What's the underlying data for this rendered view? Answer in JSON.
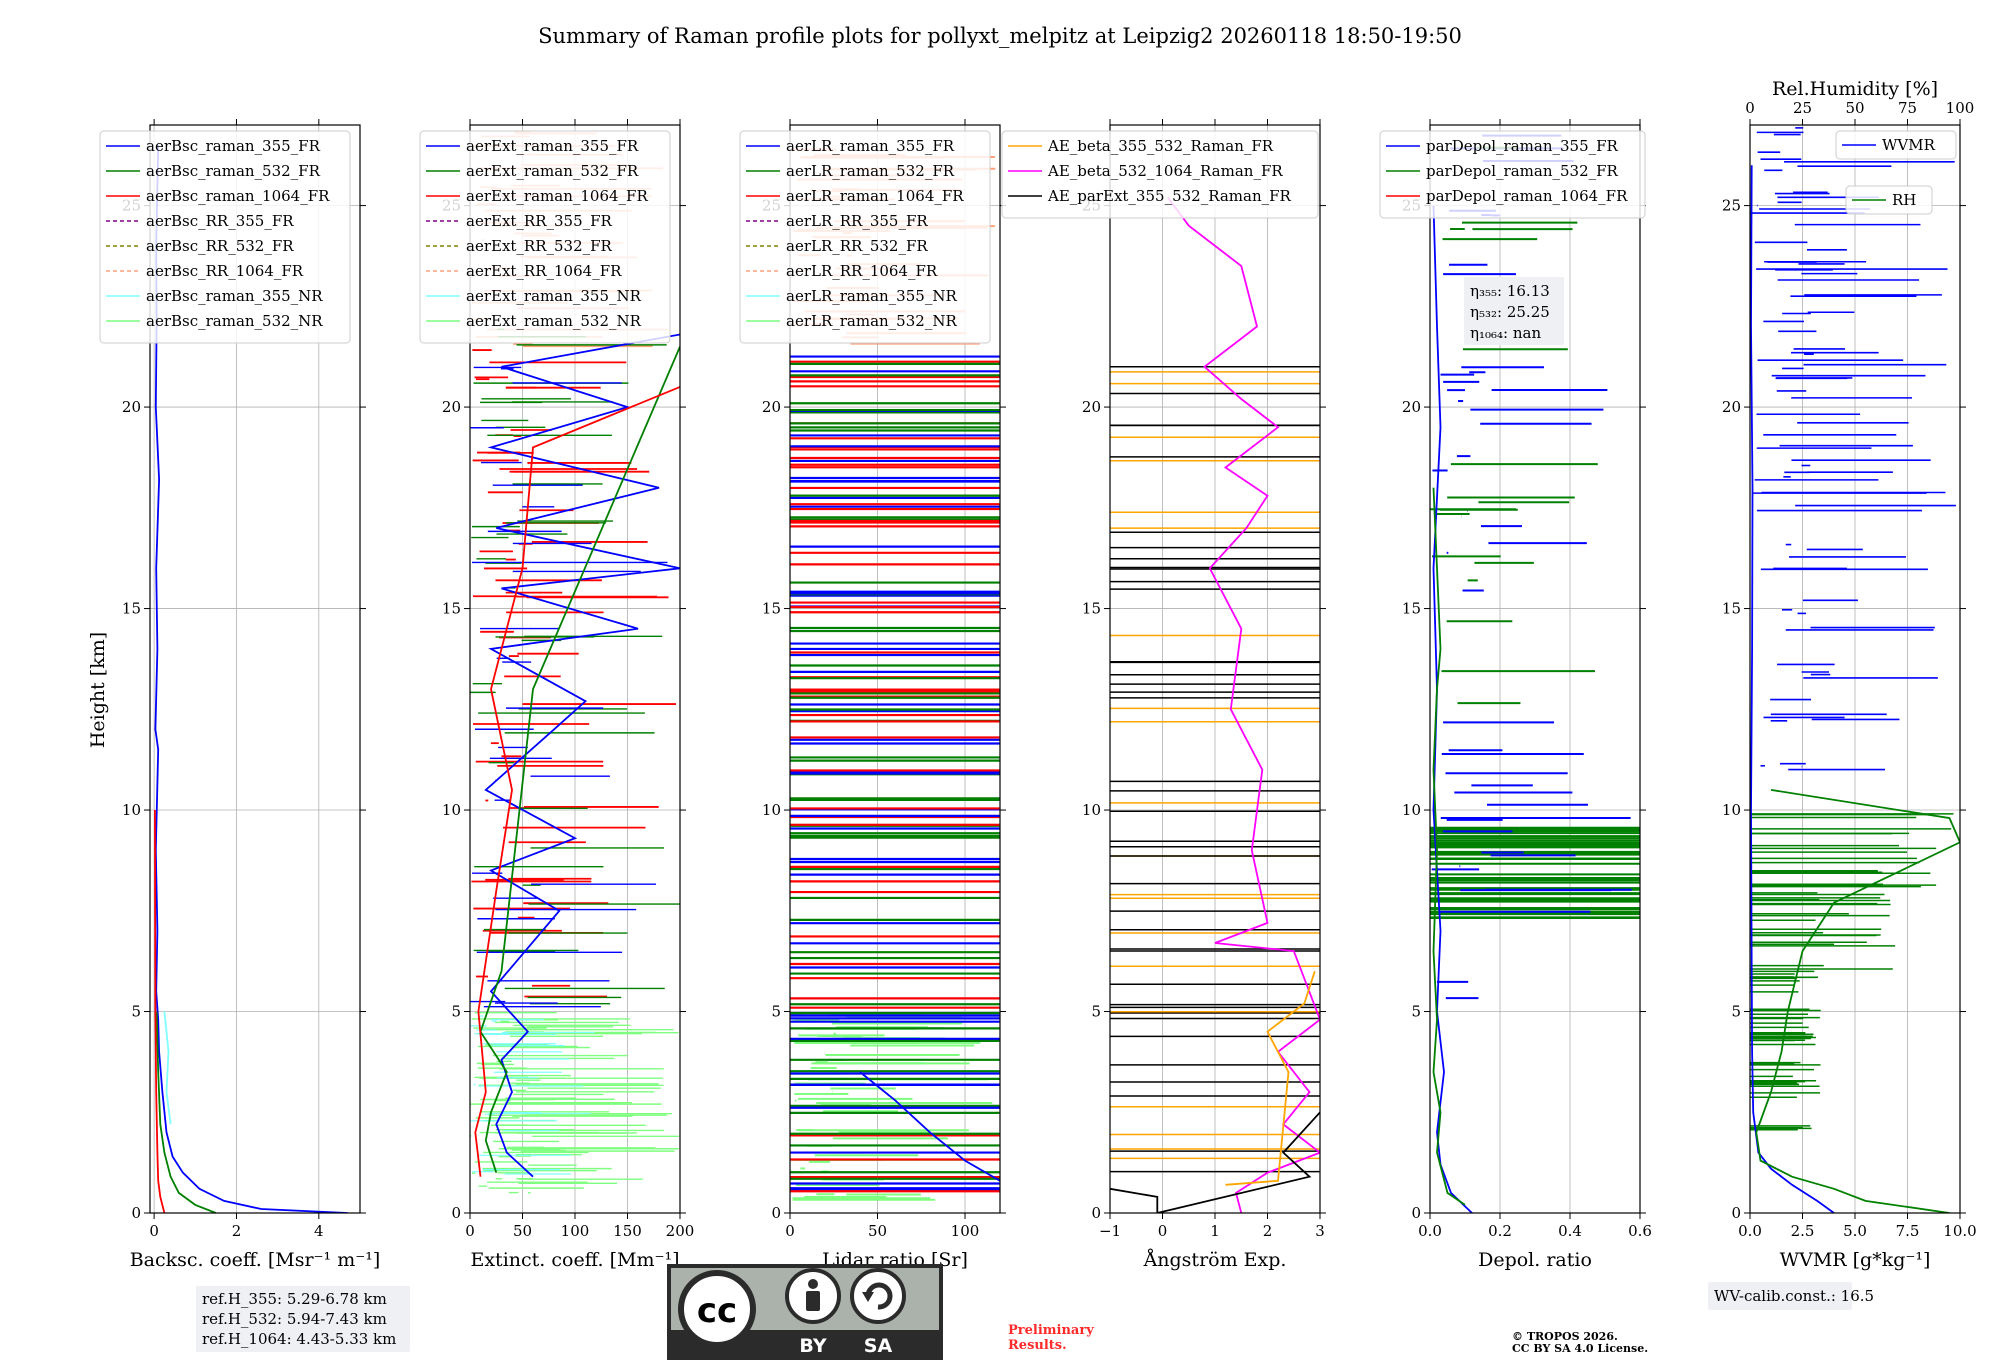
{
  "title": "Summary of Raman profile plots for pollyxt_melpitz at Leipzig2 20260118 18:50-19:50",
  "ylabel": "Height [km]",
  "colors": {
    "blue": "#0000ff",
    "green": "#008000",
    "red": "#ff0000",
    "purple": "#800080",
    "olive": "#808000",
    "salmon": "#ffa07a",
    "cyan": "#7fffff",
    "lightgreen": "#7fff7f",
    "orange": "#ffa500",
    "magenta": "#ff00ff",
    "black": "#000000"
  },
  "chart_data": [
    {
      "type": "line",
      "id": "bsc",
      "xlabel": "Backsc. coeff. [Msr⁻¹ m⁻¹]",
      "ylabel": "Height [km]",
      "xlim": [
        -0.1,
        5
      ],
      "ylim": [
        0,
        27
      ],
      "xticks": [
        0,
        2,
        4
      ],
      "xticklabels": [
        "0",
        "2",
        "4"
      ],
      "yticks": [
        0,
        5,
        10,
        15,
        20,
        25
      ],
      "yticklabels": [
        "0",
        "5",
        "10",
        "15",
        "20",
        "25"
      ],
      "legend": [
        "aerBsc_raman_355_FR",
        "aerBsc_raman_532_FR",
        "aerBsc_raman_1064_FR",
        "aerBsc_RR_355_FR",
        "aerBsc_RR_532_FR",
        "aerBsc_RR_1064_FR",
        "aerBsc_raman_355_NR",
        "aerBsc_raman_532_NR"
      ],
      "legend_loc": "top-left",
      "series": [
        {
          "name": "aerBsc_raman_355_FR",
          "color": "blue",
          "points": [
            [
              4.7,
              0
            ],
            [
              2.6,
              0.1
            ],
            [
              1.7,
              0.3
            ],
            [
              1.1,
              0.6
            ],
            [
              0.7,
              1.0
            ],
            [
              0.45,
              1.4
            ],
            [
              0.3,
              2.0
            ],
            [
              0.2,
              3.0
            ],
            [
              0.12,
              4.0
            ],
            [
              0.1,
              4.8
            ],
            [
              0.05,
              5.5
            ],
            [
              0.08,
              7
            ],
            [
              0.04,
              9
            ],
            [
              0.1,
              11.5
            ],
            [
              0.03,
              12
            ],
            [
              0.08,
              14
            ],
            [
              0.05,
              16
            ],
            [
              0.12,
              18.2
            ],
            [
              0.04,
              20
            ],
            [
              0.06,
              22
            ],
            [
              0.05,
              24
            ],
            [
              0.1,
              26.5
            ]
          ]
        },
        {
          "name": "aerBsc_raman_532_FR",
          "color": "green",
          "points": [
            [
              1.5,
              0
            ],
            [
              1.0,
              0.2
            ],
            [
              0.6,
              0.5
            ],
            [
              0.4,
              0.9
            ],
            [
              0.25,
              1.5
            ],
            [
              0.15,
              2.2
            ],
            [
              0.1,
              3.5
            ],
            [
              0.06,
              5
            ]
          ]
        },
        {
          "name": "aerBsc_raman_1064_FR",
          "color": "red",
          "points": [
            [
              0.25,
              0
            ],
            [
              0.15,
              0.4
            ],
            [
              0.1,
              0.8
            ],
            [
              0.08,
              1.5
            ],
            [
              0.05,
              3
            ],
            [
              0.03,
              5
            ],
            [
              0.02,
              10
            ]
          ]
        },
        {
          "name": "aerBsc_raman_355_NR",
          "color": "cyan",
          "points": [
            [
              0.4,
              2.2
            ],
            [
              0.3,
              3
            ],
            [
              0.35,
              4
            ],
            [
              0.25,
              5
            ]
          ]
        }
      ]
    },
    {
      "type": "line",
      "id": "ext",
      "xlabel": "Extinct. coeff. [Mm⁻¹]",
      "xlim": [
        0,
        200
      ],
      "ylim": [
        0,
        27
      ],
      "xticks": [
        0,
        50,
        100,
        150,
        200
      ],
      "xticklabels": [
        "0",
        "50",
        "100",
        "150",
        "200"
      ],
      "yticks": [
        0,
        5,
        10,
        15,
        20,
        25
      ],
      "yticklabels": [
        "0",
        "5",
        "10",
        "15",
        "20",
        "25"
      ],
      "legend": [
        "aerExt_raman_355_FR",
        "aerExt_raman_532_FR",
        "aerExt_raman_1064_FR",
        "aerExt_RR_355_FR",
        "aerExt_RR_532_FR",
        "aerExt_RR_1064_FR",
        "aerExt_raman_355_NR",
        "aerExt_raman_532_NR"
      ],
      "legend_loc": "top-left",
      "series": [
        {
          "name": "aerExt_raman_355_FR",
          "color": "blue",
          "points": [
            [
              60,
              0.9
            ],
            [
              35,
              1.5
            ],
            [
              25,
              2.2
            ],
            [
              40,
              3
            ],
            [
              30,
              3.8
            ],
            [
              55,
              4.5
            ],
            [
              20,
              5.5
            ],
            [
              85,
              7.5
            ],
            [
              20,
              8.5
            ],
            [
              100,
              9.3
            ],
            [
              15,
              10.5
            ],
            [
              80,
              12
            ],
            [
              110,
              12.7
            ],
            [
              20,
              14
            ],
            [
              160,
              14.5
            ],
            [
              30,
              15.5
            ],
            [
              200,
              16
            ],
            [
              25,
              17
            ],
            [
              180,
              18
            ],
            [
              20,
              19
            ],
            [
              150,
              20
            ],
            [
              30,
              21
            ],
            [
              200,
              21.8
            ]
          ]
        },
        {
          "name": "aerExt_raman_532_FR",
          "color": "green",
          "points": [
            [
              25,
              1
            ],
            [
              15,
              1.8
            ],
            [
              20,
              2.5
            ],
            [
              35,
              3.5
            ],
            [
              10,
              4.5
            ],
            [
              30,
              6
            ],
            [
              60,
              13
            ],
            [
              200,
              21.5
            ]
          ]
        },
        {
          "name": "aerExt_raman_1064_FR",
          "color": "red",
          "points": [
            [
              10,
              0.9
            ],
            [
              5,
              2
            ],
            [
              15,
              3
            ],
            [
              8,
              5
            ],
            [
              25,
              8
            ],
            [
              40,
              10.5
            ],
            [
              20,
              13
            ],
            [
              50,
              16
            ],
            [
              60,
              19
            ],
            [
              200,
              20.5
            ]
          ]
        }
      ]
    },
    {
      "type": "line",
      "id": "lr",
      "xlabel": "Lidar ratio [Sr]",
      "xlim": [
        0,
        120
      ],
      "ylim": [
        0,
        27
      ],
      "xticks": [
        0,
        50,
        100
      ],
      "xticklabels": [
        "0",
        "50",
        "100"
      ],
      "yticks": [
        0,
        5,
        10,
        15,
        20,
        25
      ],
      "yticklabels": [
        "0",
        "5",
        "10",
        "15",
        "20",
        "25"
      ],
      "legend": [
        "aerLR_raman_355_FR",
        "aerLR_raman_532_FR",
        "aerLR_raman_1064_FR",
        "aerLR_RR_355_FR",
        "aerLR_RR_532_FR",
        "aerLR_RR_1064_FR",
        "aerLR_raman_355_NR",
        "aerLR_raman_532_NR"
      ],
      "legend_loc": "top-left",
      "series": [
        {
          "name": "aerLR_raman_355_FR",
          "color": "blue",
          "points": [
            [
              120,
              0.8
            ],
            [
              100,
              1.3
            ],
            [
              80,
              2
            ],
            [
              60,
              2.8
            ],
            [
              40,
              3.5
            ]
          ]
        }
      ]
    },
    {
      "type": "line",
      "id": "ae",
      "xlabel": "Ångström Exp.",
      "xlim": [
        -1,
        3
      ],
      "ylim": [
        0,
        27
      ],
      "xticks": [
        -1,
        0,
        1,
        2,
        3
      ],
      "xticklabels": [
        "−1",
        "0",
        "1",
        "2",
        "3"
      ],
      "yticks": [
        0,
        5,
        10,
        15,
        20,
        25
      ],
      "yticklabels": [
        "0",
        "5",
        "10",
        "15",
        "20",
        "25"
      ],
      "legend": [
        "AE_beta_355_532_Raman_FR",
        "AE_beta_532_1064_Raman_FR",
        "AE_parExt_355_532_Raman_FR"
      ],
      "legend_loc": "top-left",
      "series": [
        {
          "name": "AE_beta_532_1064_Raman_FR",
          "color": "magenta",
          "points": [
            [
              1.5,
              0
            ],
            [
              1.4,
              0.5
            ],
            [
              2.0,
              1.0
            ],
            [
              3.0,
              1.5
            ],
            [
              2.3,
              2.2
            ],
            [
              2.8,
              3
            ],
            [
              2.2,
              4
            ],
            [
              3.0,
              4.8
            ],
            [
              2.5,
              6.5
            ],
            [
              1.0,
              6.7
            ],
            [
              2.0,
              7.2
            ],
            [
              1.7,
              9
            ],
            [
              1.9,
              11
            ],
            [
              1.3,
              12.5
            ],
            [
              1.5,
              14.5
            ],
            [
              0.9,
              16
            ],
            [
              1.6,
              17
            ],
            [
              2.0,
              17.8
            ],
            [
              1.2,
              18.5
            ],
            [
              2.2,
              19.5
            ],
            [
              1.5,
              20.2
            ],
            [
              0.8,
              21
            ],
            [
              1.8,
              22
            ],
            [
              1.5,
              23.5
            ],
            [
              0.5,
              24.5
            ],
            [
              0.1,
              25.2
            ]
          ]
        },
        {
          "name": "AE_beta_355_532_Raman_FR",
          "color": "orange",
          "points": [
            [
              1.2,
              0.7
            ],
            [
              2.2,
              0.8
            ],
            [
              2.4,
              3.5
            ],
            [
              2.0,
              4.5
            ],
            [
              2.7,
              5.2
            ],
            [
              2.9,
              6
            ]
          ]
        },
        {
          "name": "AE_parExt_355_532_Raman_FR",
          "color": "black",
          "points": [
            [
              -1,
              0.6
            ],
            [
              -0.1,
              0.4
            ],
            [
              -0.1,
              0
            ],
            [
              2.8,
              0.9
            ],
            [
              2.3,
              1.5
            ],
            [
              3,
              2.5
            ]
          ]
        }
      ]
    },
    {
      "type": "line",
      "id": "dep",
      "xlabel": "Depol. ratio",
      "xlim": [
        0,
        0.6
      ],
      "ylim": [
        0,
        27
      ],
      "xticks": [
        0,
        0.2,
        0.4,
        0.6
      ],
      "xticklabels": [
        "0.0",
        "0.2",
        "0.4",
        "0.6"
      ],
      "yticks": [
        0,
        5,
        10,
        15,
        20,
        25
      ],
      "yticklabels": [
        "0",
        "5",
        "10",
        "15",
        "20",
        "25"
      ],
      "legend": [
        "parDepol_raman_355_FR",
        "parDepol_raman_532_FR",
        "parDepol_raman_1064_FR"
      ],
      "legend_loc": "top-left",
      "series": [
        {
          "name": "parDepol_raman_355_FR",
          "color": "blue",
          "points": [
            [
              0.12,
              0
            ],
            [
              0.06,
              0.5
            ],
            [
              0.03,
              1.2
            ],
            [
              0.02,
              2
            ],
            [
              0.04,
              3.5
            ],
            [
              0.02,
              5
            ],
            [
              0.03,
              7
            ],
            [
              0.01,
              10
            ],
            [
              0.02,
              13
            ],
            [
              0.01,
              16
            ],
            [
              0.03,
              19.5
            ],
            [
              0.02,
              22
            ],
            [
              0.01,
              25
            ]
          ]
        },
        {
          "name": "parDepol_raman_532_FR",
          "color": "green",
          "points": [
            [
              0.1,
              0.2
            ],
            [
              0.05,
              0.5
            ],
            [
              0.02,
              1.5
            ],
            [
              0.03,
              2.5
            ],
            [
              0.01,
              3.5
            ],
            [
              0.02,
              4.8
            ],
            [
              0.01,
              6.5
            ],
            [
              0.02,
              9
            ],
            [
              0.01,
              11
            ],
            [
              0.02,
              13
            ],
            [
              0.03,
              14
            ],
            [
              0.02,
              16
            ],
            [
              0.01,
              18
            ]
          ]
        }
      ]
    },
    {
      "type": "line",
      "id": "wv",
      "xlabel": "WVMR [g*kg⁻¹]",
      "x2label": "Rel.Humidity [%]",
      "xlim": [
        0,
        10
      ],
      "x2lim": [
        0,
        100
      ],
      "ylim": [
        0,
        27
      ],
      "xticks": [
        0,
        2.5,
        5,
        7.5,
        10
      ],
      "xticklabels": [
        "0.0",
        "2.5",
        "5.0",
        "7.5",
        "10.0"
      ],
      "x2ticks": [
        0,
        25,
        50,
        75,
        100
      ],
      "x2ticklabels": [
        "0",
        "25",
        "50",
        "75",
        "100"
      ],
      "yticks": [
        0,
        5,
        10,
        15,
        20,
        25
      ],
      "yticklabels": [
        "0",
        "5",
        "10",
        "15",
        "20",
        "25"
      ],
      "legend": [
        "WVMR",
        "RH"
      ],
      "legend_loc": "top-right",
      "series": [
        {
          "name": "WVMR",
          "color": "blue",
          "points": [
            [
              4.0,
              0
            ],
            [
              3.2,
              0.3
            ],
            [
              2.0,
              0.7
            ],
            [
              1.0,
              1.1
            ],
            [
              0.4,
              1.5
            ],
            [
              0.15,
              2.5
            ],
            [
              0.1,
              4
            ],
            [
              0.08,
              6
            ],
            [
              0.05,
              10
            ],
            [
              0.1,
              14
            ],
            [
              0.12,
              18
            ],
            [
              0.05,
              22
            ],
            [
              0.08,
              26
            ]
          ]
        },
        {
          "name": "RH",
          "color": "green",
          "points": [
            [
              95,
              0
            ],
            [
              55,
              0.3
            ],
            [
              40,
              0.6
            ],
            [
              20,
              0.9
            ],
            [
              5,
              1.3
            ],
            [
              3,
              2
            ],
            [
              10,
              3
            ],
            [
              15,
              4
            ],
            [
              18,
              5
            ],
            [
              25,
              6.5
            ],
            [
              40,
              7.7
            ],
            [
              60,
              8.2
            ],
            [
              100,
              9.2
            ],
            [
              95,
              9.8
            ],
            [
              10,
              10.5
            ]
          ]
        }
      ]
    }
  ],
  "annotations": {
    "ref_heights": [
      "ref.H_355: 5.29-6.78 km",
      "ref.H_532: 5.94-7.43 km",
      "ref.H_1064: 4.43-5.33 km"
    ],
    "eta": [
      "η₃₅₅: 16.13",
      "η₅₃₂: 25.25",
      "η₁₀₆₄: nan"
    ],
    "wv_calib": "WV-calib.const.: 16.5",
    "license_by": "BY",
    "license_sa": "SA",
    "license_cc": "cc",
    "prelim": [
      "Preliminary",
      "Results."
    ],
    "copyright": [
      "© TROPOS 2026.",
      "CC BY SA 4.0 License."
    ]
  }
}
